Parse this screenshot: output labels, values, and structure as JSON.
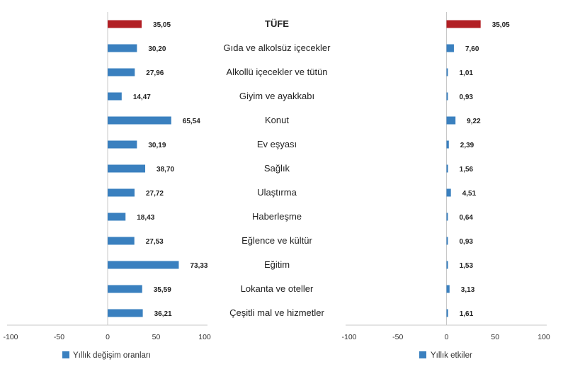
{
  "chart_data": {
    "type": "bar",
    "orientation": "horizontal",
    "categories": [
      "TÜFE",
      "Gıda ve alkolsüz içecekler",
      "Alkollü içecekler ve tütün",
      "Giyim ve ayakkabı",
      "Konut",
      "Ev eşyası",
      "Sağlık",
      "Ulaştırma",
      "Haberleşme",
      "Eğlence ve kültür",
      "Eğitim",
      "Lokanta ve oteller",
      "Çeşitli mal ve hizmetler"
    ],
    "highlight_index": 0,
    "panels": [
      {
        "legend": "Yıllık değişim oranları",
        "xlim": [
          -100,
          100
        ],
        "ticks": [
          -100,
          -50,
          0,
          50,
          100
        ],
        "tick_labels": [
          "-100",
          "-50",
          "0",
          "50",
          "100"
        ],
        "values": [
          35.05,
          30.2,
          27.96,
          14.47,
          65.54,
          30.19,
          38.7,
          27.72,
          18.43,
          27.53,
          73.33,
          35.59,
          36.21
        ],
        "value_labels": [
          "35,05",
          "30,20",
          "27,96",
          "14,47",
          "65,54",
          "30,19",
          "38,70",
          "27,72",
          "18,43",
          "27,53",
          "73,33",
          "35,59",
          "36,21"
        ]
      },
      {
        "legend": "Yıllık etkiler",
        "xlim": [
          -100,
          100
        ],
        "ticks": [
          -100,
          -50,
          0,
          50,
          100
        ],
        "tick_labels": [
          "-100",
          "-50",
          "0",
          "50",
          "100"
        ],
        "values": [
          35.05,
          7.6,
          1.01,
          0.93,
          9.22,
          2.39,
          1.56,
          4.51,
          0.64,
          0.93,
          1.53,
          3.13,
          1.61
        ],
        "value_labels": [
          "35,05",
          "7,60",
          "1,01",
          "0,93",
          "9,22",
          "2,39",
          "1,56",
          "4,51",
          "0,64",
          "0,93",
          "1,53",
          "3,13",
          "1,61"
        ]
      }
    ],
    "colors": {
      "series": "#3a80bf",
      "highlight": "#b21f24",
      "axis": "#c8c8c8"
    },
    "grid": false
  }
}
